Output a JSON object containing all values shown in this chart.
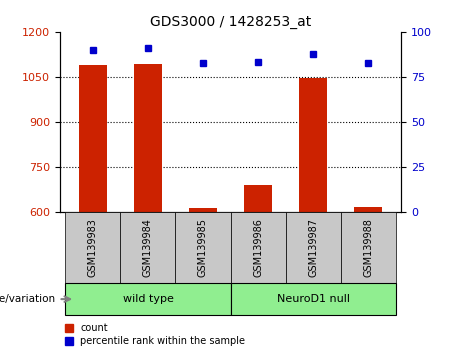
{
  "title": "GDS3000 / 1428253_at",
  "samples": [
    "GSM139983",
    "GSM139984",
    "GSM139985",
    "GSM139986",
    "GSM139987",
    "GSM139988"
  ],
  "counts": [
    1090,
    1092,
    615,
    690,
    1048,
    617
  ],
  "percentiles": [
    90,
    91,
    83,
    83.5,
    88,
    83
  ],
  "ylim_left": [
    600,
    1200
  ],
  "ylim_right": [
    0,
    100
  ],
  "yticks_left": [
    600,
    750,
    900,
    1050,
    1200
  ],
  "yticks_right": [
    0,
    25,
    50,
    75,
    100
  ],
  "grid_lines": [
    750,
    900,
    1050
  ],
  "bar_color": "#CC2200",
  "dot_color": "#0000CC",
  "group_labels": [
    "wild type",
    "NeuroD1 null"
  ],
  "group_ranges": [
    [
      0,
      2
    ],
    [
      3,
      5
    ]
  ],
  "group_color": "#90EE90",
  "group_label_text": "genotype/variation",
  "legend_count_label": "count",
  "legend_percentile_label": "percentile rank within the sample",
  "bar_width": 0.5,
  "tick_label_color_left": "#CC2200",
  "tick_label_color_right": "#0000CC",
  "xtick_bg_color": "#C8C8C8",
  "fig_width": 4.61,
  "fig_height": 3.54,
  "dpi": 100
}
